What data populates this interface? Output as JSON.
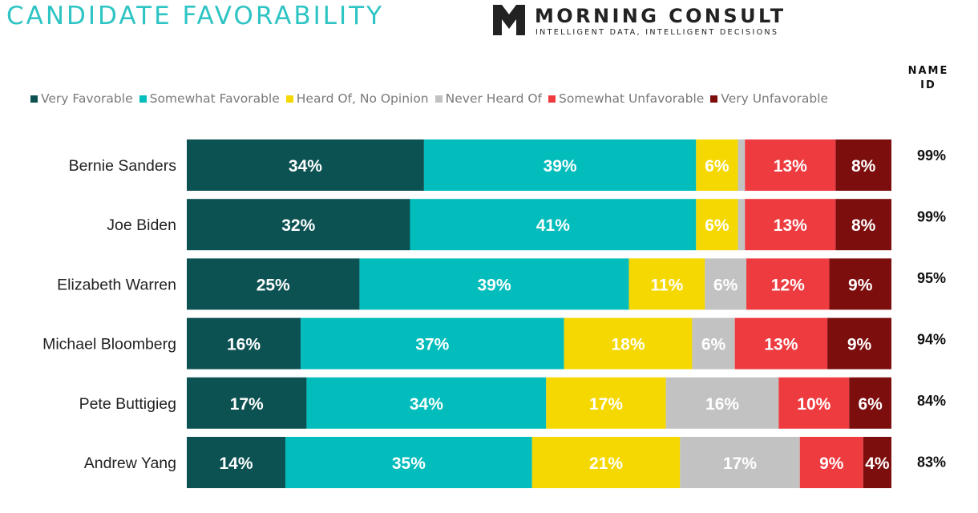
{
  "title": "CANDIDATE FAVORABILITY",
  "brand": {
    "name": "MORNING CONSULT",
    "tagline": "INTELLIGENT DATA, INTELLIGENT DECISIONS"
  },
  "nameid_header": [
    "NAME",
    "ID"
  ],
  "colors": {
    "very_favorable": "#0d5253",
    "somewhat_favorable": "#03bcbc",
    "no_opinion": "#f5d800",
    "never_heard": "#c2c2c2",
    "somewhat_unfavorable": "#ee3b3f",
    "very_unfavorable": "#7d0e0e"
  },
  "legend": [
    {
      "label": "Very Favorable",
      "color": "#0d5253"
    },
    {
      "label": "Somewhat Favorable",
      "color": "#03bcbc"
    },
    {
      "label": "Heard Of, No Opinion",
      "color": "#f5d800"
    },
    {
      "label": "Never Heard Of",
      "color": "#c2c2c2"
    },
    {
      "label": "Somewhat Unfavorable",
      "color": "#ee3b3f"
    },
    {
      "label": "Very Unfavorable",
      "color": "#7d0e0e"
    }
  ],
  "chart_data": {
    "type": "bar",
    "orientation": "horizontal",
    "stacked": true,
    "title": "CANDIDATE FAVORABILITY",
    "legend_position": "top",
    "categories": [
      "Bernie Sanders",
      "Joe Biden",
      "Elizabeth Warren",
      "Michael Bloomberg",
      "Pete Buttigieg",
      "Andrew Yang"
    ],
    "series": [
      {
        "name": "Very Favorable",
        "color": "#0d5253",
        "values": [
          34,
          32,
          25,
          16,
          17,
          14
        ],
        "labels": [
          "34%",
          "32%",
          "25%",
          "16%",
          "17%",
          "14%"
        ]
      },
      {
        "name": "Somewhat Favorable",
        "color": "#03bcbc",
        "values": [
          39,
          41,
          39,
          37,
          34,
          35
        ],
        "labels": [
          "39%",
          "41%",
          "39%",
          "37%",
          "34%",
          "35%"
        ]
      },
      {
        "name": "Heard Of, No Opinion",
        "color": "#f5d800",
        "values": [
          6,
          6,
          11,
          18,
          17,
          21
        ],
        "labels": [
          "6%",
          "6%",
          "11%",
          "18%",
          "17%",
          "21%"
        ]
      },
      {
        "name": "Never Heard Of",
        "color": "#c2c2c2",
        "values": [
          1,
          1,
          6,
          6,
          16,
          17
        ],
        "labels": [
          "",
          "",
          "6%",
          "6%",
          "16%",
          "17%"
        ]
      },
      {
        "name": "Somewhat Unfavorable",
        "color": "#ee3b3f",
        "values": [
          13,
          13,
          12,
          13,
          10,
          9
        ],
        "labels": [
          "13%",
          "13%",
          "12%",
          "13%",
          "10%",
          "9%"
        ]
      },
      {
        "name": "Very Unfavorable",
        "color": "#7d0e0e",
        "values": [
          8,
          8,
          9,
          9,
          6,
          4
        ],
        "labels": [
          "8%",
          "8%",
          "9%",
          "9%",
          "6%",
          "4%"
        ]
      }
    ],
    "name_id": [
      "99%",
      "99%",
      "95%",
      "94%",
      "84%",
      "83%"
    ],
    "xlim": [
      0,
      100
    ]
  }
}
